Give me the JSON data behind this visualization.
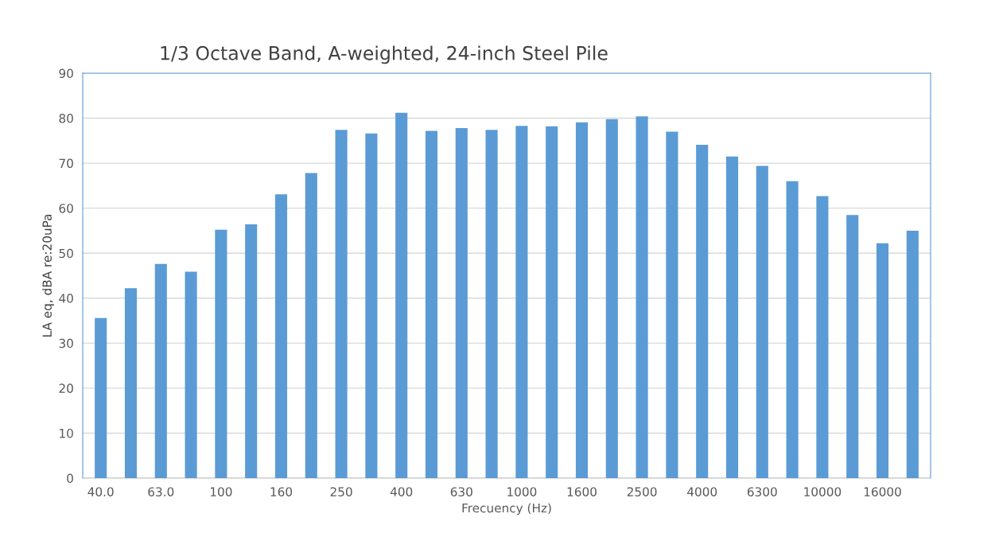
{
  "chart_data": {
    "type": "bar",
    "title": "1/3 Octave Band, A-weighted, 24-inch Steel Pile",
    "xlabel": "Frecuency (Hz)",
    "ylabel": "LA eq, dBA re:20uPa",
    "categories": [
      "40.0",
      null,
      "63.0",
      null,
      "100",
      null,
      "160",
      null,
      "250",
      null,
      "400",
      null,
      "630",
      null,
      "1000",
      null,
      "1600",
      null,
      "2500",
      null,
      "4000",
      null,
      "6300",
      null,
      "10000",
      null,
      "16000",
      null
    ],
    "values": [
      35.6,
      42.2,
      47.6,
      45.9,
      55.2,
      56.4,
      63.1,
      67.8,
      77.4,
      76.6,
      81.2,
      77.2,
      77.8,
      77.4,
      78.3,
      78.2,
      79.1,
      79.8,
      80.4,
      77.0,
      74.1,
      71.5,
      69.4,
      66.0,
      62.7,
      58.5,
      52.2,
      55.0
    ],
    "color": "#5b9bd5",
    "ylim": [
      0,
      90
    ],
    "yticks": [
      0,
      10,
      20,
      30,
      40,
      50,
      60,
      70,
      80,
      90
    ],
    "grid": "y",
    "legend": false
  }
}
